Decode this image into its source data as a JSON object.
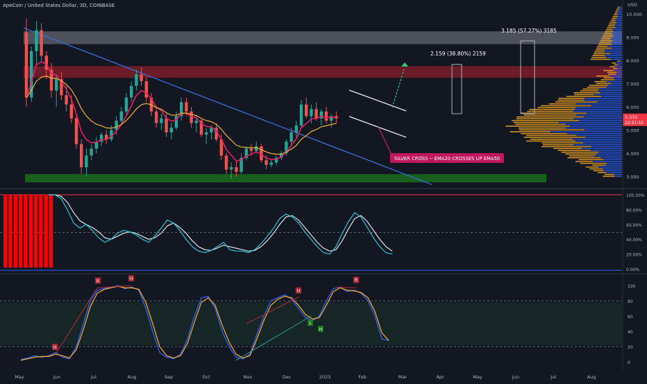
{
  "header": {
    "title": "ApeCoin / United States Dollar, 3D, COINBASE",
    "currency": "USD"
  },
  "price_axis": {
    "ticks": [
      "10.000",
      "9.000",
      "8.000",
      "7.000",
      "6.000",
      "5.000",
      "4.000",
      "3.000"
    ],
    "last_price": "5.531",
    "countdown": "22:51:53"
  },
  "annotations": {
    "target1": "2.159 (38.80%) 2159",
    "target2": "3.185 (57.27%) 3185",
    "silver_cross": "SILVER CROSS -- EMA20 CROSSES UP EMA50"
  },
  "stoch_rsi": {
    "ticks": [
      "100.00%",
      "80.00%",
      "60.00%",
      "40.00%",
      "20.00%",
      "0.00%"
    ]
  },
  "oscillator": {
    "ticks": [
      "100",
      "80",
      "60",
      "40",
      "20",
      "0"
    ],
    "markers": [
      "H",
      "R",
      "H",
      "R",
      "H",
      "L",
      "H"
    ]
  },
  "time_axis": {
    "labels": [
      "May",
      "Jun",
      "Jul",
      "Aug",
      "Sep",
      "Oct",
      "Nov",
      "Dec",
      "2023",
      "Feb",
      "Mar",
      "Apr",
      "May",
      "Jun",
      "Jul",
      "Aug"
    ]
  },
  "chart_data": {
    "type": "candlestick",
    "title": "ApeCoin / United States Dollar, 3D, COINBASE",
    "ylim": [
      2.6,
      10.6
    ],
    "y_ticks": [
      3,
      4,
      5,
      6,
      7,
      8,
      9,
      10
    ],
    "x_labels": [
      "May",
      "Jun",
      "Jul",
      "Aug",
      "Sep",
      "Oct",
      "Nov",
      "Dec",
      "2023",
      "Feb",
      "Mar",
      "Apr",
      "May",
      "Jun",
      "Jul",
      "Aug"
    ],
    "zones": [
      {
        "label": "resistance-grey",
        "range": [
          8.7,
          9.25
        ],
        "color": "#9598a1"
      },
      {
        "label": "resistance-red",
        "range": [
          7.25,
          7.75
        ],
        "color": "#8b1e2c"
      },
      {
        "label": "support-green",
        "range": [
          2.75,
          3.1
        ],
        "color": "#1b7a1b"
      }
    ],
    "series": [
      {
        "kind": "ohlc",
        "data": [
          [
            9.2,
            9.8,
            6.0,
            6.4
          ],
          [
            6.4,
            8.6,
            6.2,
            8.4
          ],
          [
            8.4,
            9.7,
            7.8,
            9.3
          ],
          [
            9.3,
            9.6,
            7.9,
            8.2
          ],
          [
            8.2,
            8.4,
            7.2,
            7.6
          ],
          [
            7.6,
            7.9,
            6.4,
            6.7
          ],
          [
            6.7,
            7.4,
            6.0,
            7.2
          ],
          [
            7.2,
            7.5,
            6.3,
            6.5
          ],
          [
            6.5,
            6.9,
            5.8,
            6.1
          ],
          [
            6.1,
            6.5,
            5.3,
            5.5
          ],
          [
            5.5,
            5.7,
            4.2,
            4.4
          ],
          [
            4.4,
            4.6,
            3.1,
            3.4
          ],
          [
            3.4,
            4.2,
            3.0,
            3.9
          ],
          [
            3.9,
            4.4,
            3.7,
            4.2
          ],
          [
            4.2,
            4.7,
            4.0,
            4.5
          ],
          [
            4.5,
            4.9,
            4.3,
            4.8
          ],
          [
            4.8,
            5.0,
            4.4,
            4.6
          ],
          [
            4.6,
            5.2,
            4.5,
            5.0
          ],
          [
            5.0,
            5.6,
            4.8,
            5.4
          ],
          [
            5.4,
            6.0,
            5.2,
            5.8
          ],
          [
            5.8,
            6.6,
            5.6,
            6.4
          ],
          [
            6.4,
            7.1,
            6.2,
            6.9
          ],
          [
            6.9,
            7.6,
            6.7,
            7.4
          ],
          [
            7.4,
            7.7,
            6.9,
            7.1
          ],
          [
            7.1,
            7.3,
            6.2,
            6.4
          ],
          [
            6.4,
            6.6,
            5.6,
            5.8
          ],
          [
            5.8,
            6.0,
            5.1,
            5.3
          ],
          [
            5.3,
            5.7,
            5.0,
            5.5
          ],
          [
            5.5,
            5.7,
            4.7,
            4.9
          ],
          [
            4.9,
            5.3,
            4.6,
            5.1
          ],
          [
            5.1,
            5.8,
            5.0,
            5.6
          ],
          [
            5.6,
            6.4,
            5.4,
            6.2
          ],
          [
            6.2,
            6.4,
            5.6,
            5.8
          ],
          [
            5.8,
            6.0,
            5.1,
            5.3
          ],
          [
            5.3,
            5.6,
            4.9,
            5.4
          ],
          [
            5.4,
            5.5,
            4.7,
            4.8
          ],
          [
            4.8,
            5.1,
            4.4,
            4.9
          ],
          [
            4.9,
            5.2,
            4.6,
            5.1
          ],
          [
            5.1,
            5.3,
            4.5,
            4.6
          ],
          [
            4.6,
            4.8,
            3.7,
            3.9
          ],
          [
            3.9,
            4.0,
            3.1,
            3.3
          ],
          [
            3.3,
            3.6,
            2.9,
            3.4
          ],
          [
            3.4,
            3.7,
            3.0,
            3.2
          ],
          [
            3.2,
            4.0,
            3.1,
            3.8
          ],
          [
            3.8,
            4.3,
            3.7,
            4.2
          ],
          [
            4.2,
            4.4,
            3.9,
            4.1
          ],
          [
            4.1,
            4.5,
            4.0,
            4.3
          ],
          [
            4.3,
            4.4,
            3.6,
            3.7
          ],
          [
            3.7,
            3.9,
            3.3,
            3.5
          ],
          [
            3.5,
            3.7,
            3.4,
            3.6
          ],
          [
            3.6,
            3.9,
            3.5,
            3.8
          ],
          [
            3.8,
            4.1,
            3.7,
            4.0
          ],
          [
            4.0,
            4.6,
            3.9,
            4.5
          ],
          [
            4.5,
            5.1,
            4.3,
            4.9
          ],
          [
            4.9,
            5.4,
            4.7,
            5.2
          ],
          [
            5.2,
            6.3,
            5.1,
            6.1
          ],
          [
            6.1,
            6.4,
            5.5,
            5.6
          ],
          [
            5.6,
            6.1,
            5.3,
            5.9
          ],
          [
            5.9,
            6.2,
            5.4,
            5.5
          ],
          [
            5.5,
            5.9,
            5.2,
            5.8
          ],
          [
            5.8,
            6.0,
            5.3,
            5.4
          ],
          [
            5.4,
            5.7,
            5.1,
            5.6
          ],
          [
            5.6,
            5.8,
            5.3,
            5.5
          ]
        ]
      },
      {
        "name": "",
        "kind": "ema20",
        "color": "#e91e63"
      },
      {
        "name": "",
        "kind": "ema50",
        "color": "#f6b22f"
      }
    ],
    "trendline": {
      "from": [
        0,
        9.4
      ],
      "to": [
        90,
        2.65
      ]
    },
    "stoch_rsi": {
      "k": [
        100,
        100,
        95,
        80,
        62,
        55,
        60,
        52,
        42,
        36,
        40,
        48,
        52,
        50,
        46,
        40,
        36,
        44,
        55,
        66,
        62,
        52,
        40,
        30,
        24,
        22,
        25,
        30,
        36,
        26,
        24,
        24,
        22,
        26,
        34,
        44,
        55,
        68,
        74,
        70,
        62,
        50,
        40,
        30,
        22,
        20,
        30,
        48,
        64,
        76,
        70,
        56,
        42,
        30,
        22,
        20
      ],
      "d": [
        100,
        100,
        98,
        90,
        76,
        65,
        60,
        56,
        50,
        42,
        40,
        44,
        48,
        50,
        48,
        44,
        40,
        42,
        48,
        58,
        62,
        56,
        48,
        38,
        30,
        26,
        25,
        28,
        32,
        30,
        28,
        26,
        24,
        25,
        30,
        38,
        48,
        60,
        70,
        72,
        66,
        56,
        46,
        36,
        28,
        24,
        26,
        38,
        54,
        68,
        72,
        64,
        52,
        40,
        30,
        24
      ]
    },
    "oscillator": {
      "fast": [
        3,
        5,
        8,
        6,
        8,
        12,
        6,
        4,
        20,
        50,
        80,
        94,
        96,
        98,
        100,
        96,
        98,
        94,
        70,
        40,
        12,
        6,
        4,
        10,
        30,
        60,
        84,
        86,
        70,
        40,
        20,
        6,
        4,
        10,
        36,
        60,
        80,
        84,
        88,
        82,
        70,
        58,
        54,
        60,
        80,
        96,
        98,
        92,
        94,
        90,
        80,
        60,
        30,
        28
      ],
      "slow": [
        2,
        4,
        6,
        7,
        7,
        10,
        8,
        5,
        16,
        42,
        72,
        90,
        95,
        97,
        99,
        97,
        97,
        95,
        78,
        50,
        20,
        8,
        5,
        8,
        24,
        52,
        78,
        84,
        74,
        48,
        26,
        10,
        5,
        8,
        30,
        54,
        74,
        82,
        86,
        84,
        74,
        62,
        56,
        58,
        74,
        92,
        97,
        94,
        93,
        91,
        84,
        66,
        38,
        28
      ]
    }
  }
}
